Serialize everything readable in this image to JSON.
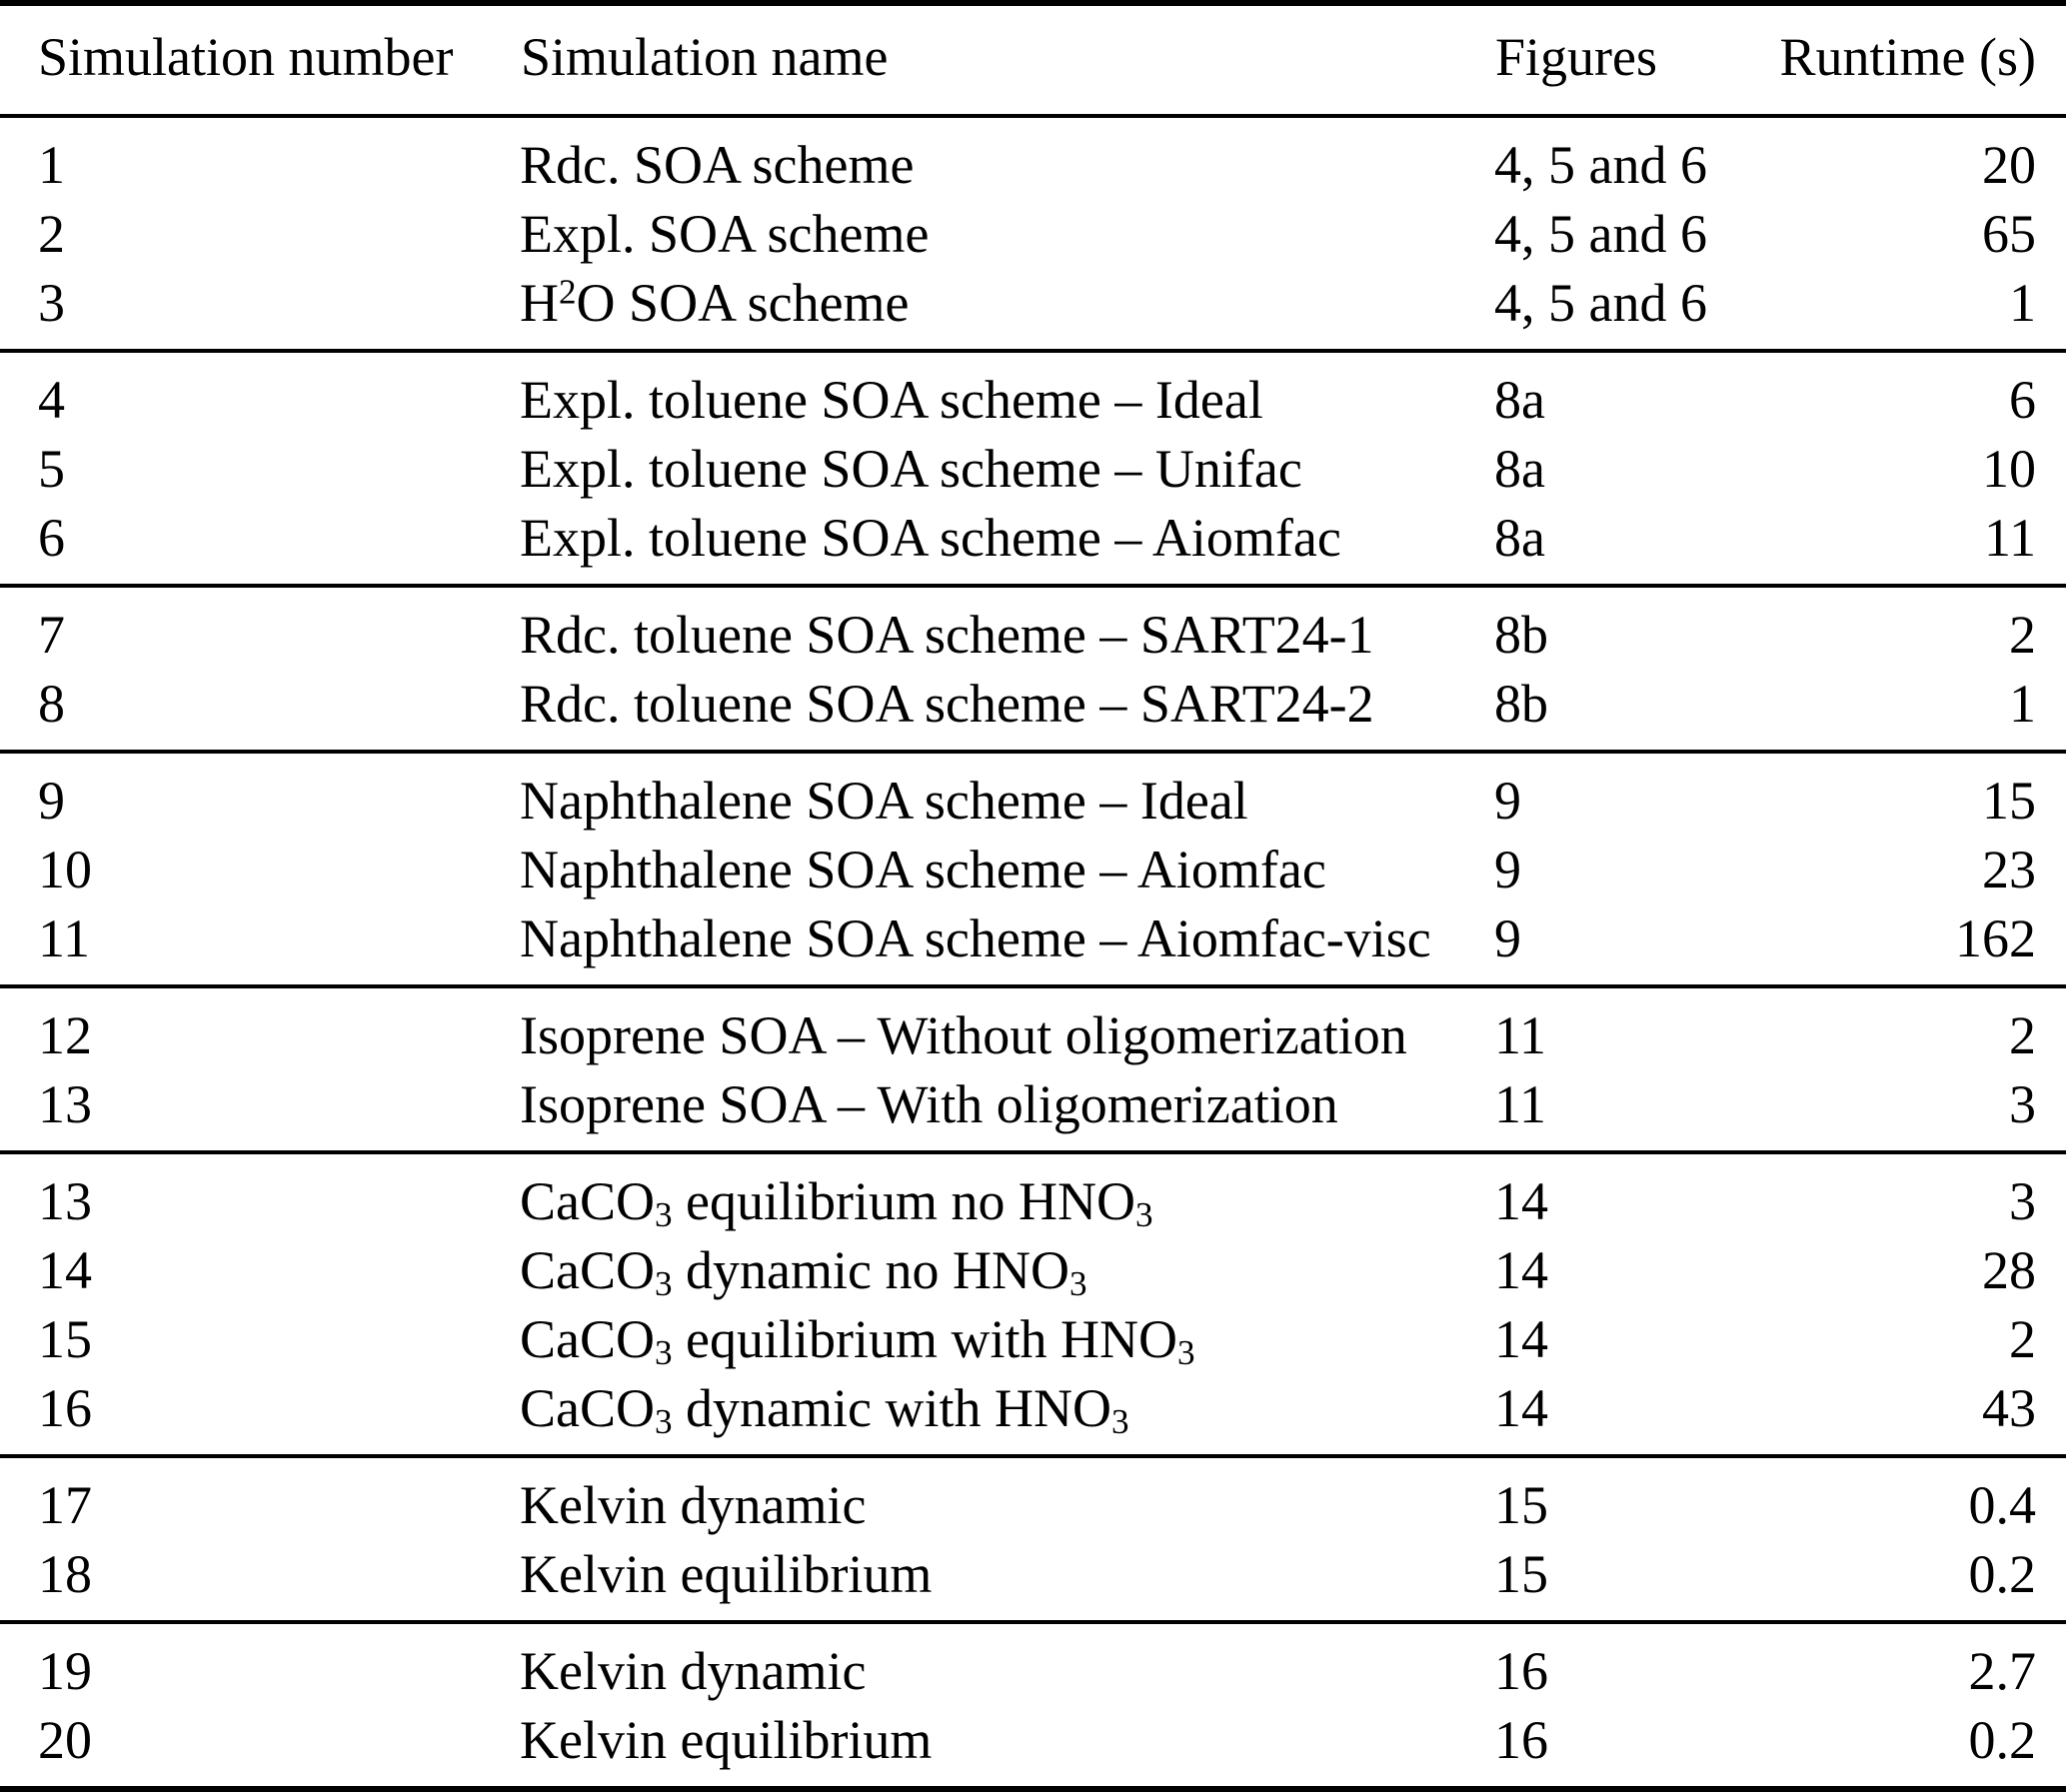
{
  "table": {
    "columns": [
      "Simulation number",
      "Simulation name",
      "Figures",
      "Runtime (s)"
    ],
    "groups": [
      {
        "rows": [
          {
            "number": "1",
            "name": [
              {
                "text": "Rdc. SOA scheme"
              }
            ],
            "figures": "4, 5 and 6",
            "runtime": "20"
          },
          {
            "number": "2",
            "name": [
              {
                "text": "Expl. SOA scheme"
              }
            ],
            "figures": "4, 5 and 6",
            "runtime": "65"
          },
          {
            "number": "3",
            "name": [
              {
                "text": "H"
              },
              {
                "text": "2",
                "style": "sup"
              },
              {
                "text": "O SOA scheme"
              }
            ],
            "figures": "4, 5 and 6",
            "runtime": "1"
          }
        ]
      },
      {
        "rows": [
          {
            "number": "4",
            "name": [
              {
                "text": "Expl. toluene SOA scheme – Ideal"
              }
            ],
            "figures": "8a",
            "runtime": "6"
          },
          {
            "number": "5",
            "name": [
              {
                "text": "Expl. toluene SOA scheme – Unifac"
              }
            ],
            "figures": "8a",
            "runtime": "10"
          },
          {
            "number": "6",
            "name": [
              {
                "text": "Expl. toluene SOA scheme – Aiomfac"
              }
            ],
            "figures": "8a",
            "runtime": "11"
          }
        ]
      },
      {
        "rows": [
          {
            "number": "7",
            "name": [
              {
                "text": "Rdc. toluene SOA scheme – SART24-1"
              }
            ],
            "figures": "8b",
            "runtime": "2"
          },
          {
            "number": "8",
            "name": [
              {
                "text": "Rdc. toluene SOA scheme – SART24-2"
              }
            ],
            "figures": "8b",
            "runtime": "1"
          }
        ]
      },
      {
        "rows": [
          {
            "number": "9",
            "name": [
              {
                "text": "Naphthalene SOA scheme – Ideal"
              }
            ],
            "figures": "9",
            "runtime": "15"
          },
          {
            "number": "10",
            "name": [
              {
                "text": "Naphthalene SOA scheme – Aiomfac"
              }
            ],
            "figures": "9",
            "runtime": "23"
          },
          {
            "number": "11",
            "name": [
              {
                "text": "Naphthalene SOA scheme – Aiomfac-visc"
              }
            ],
            "figures": "9",
            "runtime": "162"
          }
        ]
      },
      {
        "rows": [
          {
            "number": "12",
            "name": [
              {
                "text": "Isoprene SOA – Without oligomerization"
              }
            ],
            "figures": "11",
            "runtime": "2"
          },
          {
            "number": "13",
            "name": [
              {
                "text": "Isoprene SOA – With oligomerization"
              }
            ],
            "figures": "11",
            "runtime": "3"
          }
        ]
      },
      {
        "rows": [
          {
            "number": "13",
            "name": [
              {
                "text": "CaCO"
              },
              {
                "text": "3",
                "style": "sub"
              },
              {
                "text": " equilibrium no HNO"
              },
              {
                "text": "3",
                "style": "sub"
              }
            ],
            "figures": "14",
            "runtime": "3"
          },
          {
            "number": "14",
            "name": [
              {
                "text": "CaCO"
              },
              {
                "text": "3",
                "style": "sub"
              },
              {
                "text": " dynamic no HNO"
              },
              {
                "text": "3",
                "style": "sub"
              }
            ],
            "figures": "14",
            "runtime": "28"
          },
          {
            "number": "15",
            "name": [
              {
                "text": "CaCO"
              },
              {
                "text": "3",
                "style": "sub"
              },
              {
                "text": " equilibrium with HNO"
              },
              {
                "text": "3",
                "style": "sub"
              }
            ],
            "figures": "14",
            "runtime": "2"
          },
          {
            "number": "16",
            "name": [
              {
                "text": "CaCO"
              },
              {
                "text": "3",
                "style": "sub"
              },
              {
                "text": " dynamic with HNO"
              },
              {
                "text": "3",
                "style": "sub"
              }
            ],
            "figures": "14",
            "runtime": "43"
          }
        ]
      },
      {
        "rows": [
          {
            "number": "17",
            "name": [
              {
                "text": "Kelvin dynamic"
              }
            ],
            "figures": "15",
            "runtime": "0.4"
          },
          {
            "number": "18",
            "name": [
              {
                "text": "Kelvin equilibrium"
              }
            ],
            "figures": "15",
            "runtime": "0.2"
          }
        ]
      },
      {
        "rows": [
          {
            "number": "19",
            "name": [
              {
                "text": "Kelvin dynamic"
              }
            ],
            "figures": "16",
            "runtime": "2.7"
          },
          {
            "number": "20",
            "name": [
              {
                "text": "Kelvin equilibrium"
              }
            ],
            "figures": "16",
            "runtime": "0.2"
          }
        ]
      }
    ]
  }
}
